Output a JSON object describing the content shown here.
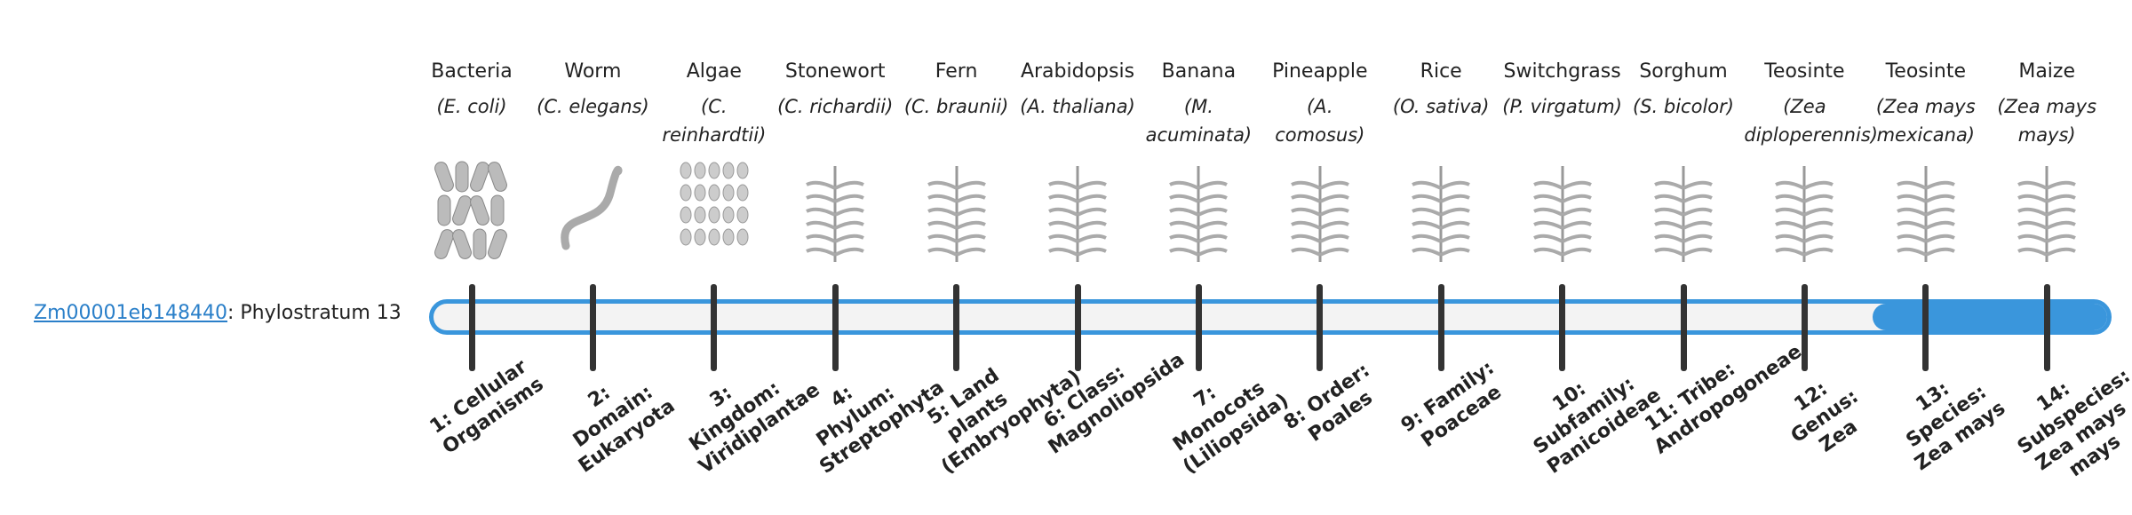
{
  "gene": {
    "id": "Zm00001eb148440",
    "suffix": ": Phylostratum 13"
  },
  "organisms": [
    {
      "name": "Bacteria",
      "species": "(E. coli)"
    },
    {
      "name": "Worm",
      "species": "(C. elegans)"
    },
    {
      "name": "Algae",
      "species": "(C. reinhardtii)"
    },
    {
      "name": "Stonewort",
      "species": "(C. richardii)"
    },
    {
      "name": "Fern",
      "species": "(C. braunii)"
    },
    {
      "name": "Arabidopsis",
      "species": "(A. thaliana)"
    },
    {
      "name": "Banana",
      "species": "(M. acuminata)"
    },
    {
      "name": "Pineapple",
      "species": "(A. comosus)"
    },
    {
      "name": "Rice",
      "species": "(O. sativa)"
    },
    {
      "name": "Switchgrass",
      "species": "(P. virgatum)"
    },
    {
      "name": "Sorghum",
      "species": "(S. bicolor)"
    },
    {
      "name": "Teosinte",
      "species": "(Zea diploperennis)"
    },
    {
      "name": "Teosinte",
      "species": "(Zea mays mexicana)"
    },
    {
      "name": "Maize",
      "species": "(Zea mays mays)"
    }
  ],
  "strata": [
    "1: Cellular Organisms",
    "2: Domain: Eukaryota",
    "3: Kingdom: Viridiplantae",
    "4: Phylum: Streptophyta",
    "5: Land plants (Embryophyta)",
    "6: Class: Magnoliopsida",
    "7: Monocots (Liliopsida)",
    "8: Order: Poales",
    "9: Family: Poaceae",
    "10: Subfamily: Panicoideae",
    "11: Tribe: Andropogoneae",
    "12: Genus: Zea",
    "13: Species: Zea mays",
    "14: Subspecies: Zea mays mays"
  ]
}
